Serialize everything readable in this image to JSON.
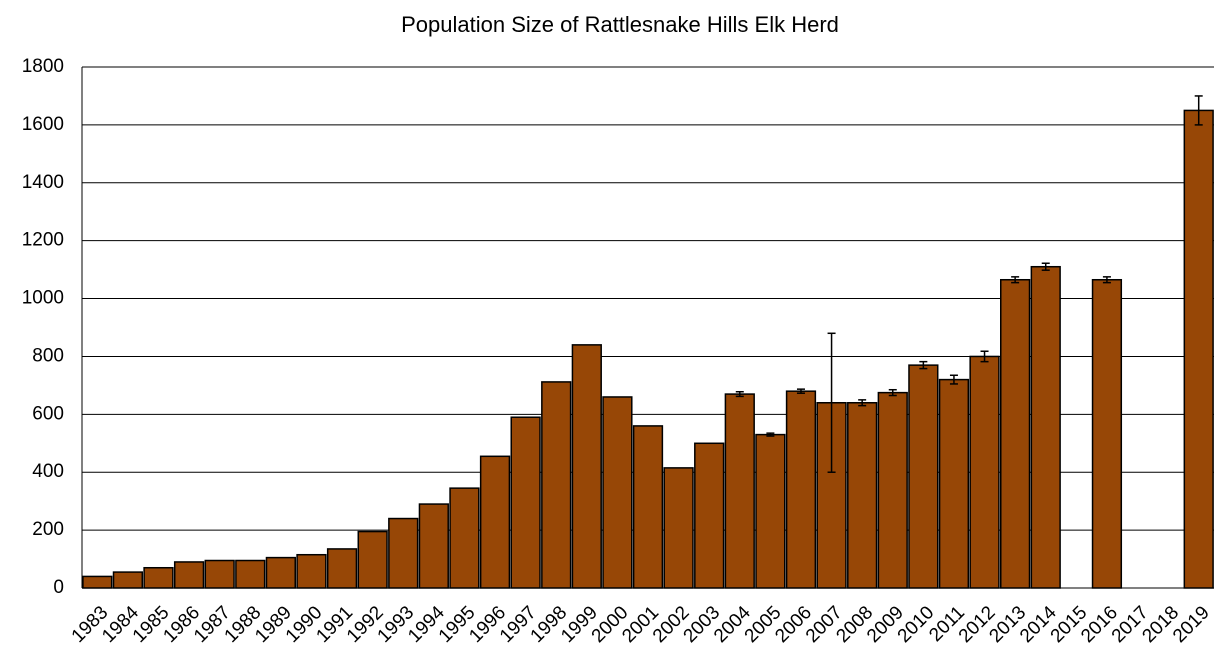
{
  "chart_data": {
    "type": "bar",
    "title": "Population Size of Rattlesnake Hills Elk Herd",
    "categories": [
      "1983",
      "1984",
      "1985",
      "1986",
      "1987",
      "1988",
      "1989",
      "1990",
      "1991",
      "1992",
      "1993",
      "1994",
      "1995",
      "1996",
      "1997",
      "1998",
      "1999",
      "2000",
      "2001",
      "2002",
      "2003",
      "2004",
      "2005",
      "2006",
      "2007",
      "2008",
      "2009",
      "2010",
      "2011",
      "2012",
      "2013",
      "2014",
      "2015",
      "2016",
      "2017",
      "2018",
      "2019"
    ],
    "values": [
      40,
      55,
      70,
      90,
      95,
      95,
      105,
      115,
      135,
      195,
      240,
      290,
      345,
      455,
      590,
      712,
      840,
      660,
      560,
      415,
      500,
      670,
      530,
      680,
      640,
      640,
      675,
      770,
      720,
      800,
      1065,
      1110,
      null,
      1065,
      null,
      null,
      1650
    ],
    "errors": [
      null,
      null,
      null,
      null,
      null,
      null,
      null,
      null,
      null,
      null,
      null,
      null,
      null,
      null,
      null,
      null,
      null,
      null,
      null,
      null,
      null,
      8,
      5,
      7,
      240,
      10,
      10,
      12,
      15,
      18,
      10,
      12,
      null,
      10,
      null,
      null,
      50
    ],
    "color": "#974706",
    "ylim": [
      0,
      1800
    ],
    "yticks": [
      0,
      200,
      400,
      600,
      800,
      1000,
      1200,
      1400,
      1600,
      1800
    ],
    "grid": true
  }
}
